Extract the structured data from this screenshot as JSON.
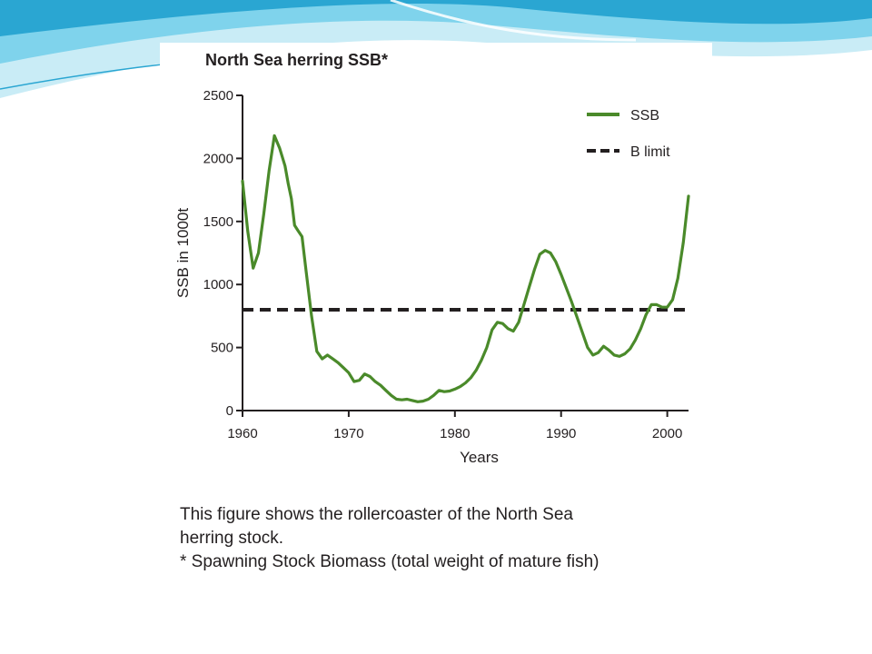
{
  "colors": {
    "ssb_line": "#4a8a2a",
    "blimit_line": "#231f20",
    "banner_light": "#c9ecf6",
    "banner_mid": "#7fd3ec",
    "banner_dark": "#2aa6d2"
  },
  "caption": {
    "line1": "This figure shows the rollercoaster of the North Sea",
    "line2": "herring stock.",
    "line3": "* Spawning Stock Biomass (total weight of mature fish)"
  },
  "chart_data": {
    "type": "line",
    "title": "North Sea herring SSB*",
    "xlabel": "Years",
    "ylabel": "SSB in 1000t",
    "xlim": [
      1960,
      2002
    ],
    "ylim": [
      0,
      2500
    ],
    "xticks": [
      1960,
      1970,
      1980,
      1990,
      2000
    ],
    "yticks": [
      0,
      500,
      1000,
      1500,
      2000,
      2500
    ],
    "grid": false,
    "legend_position": "top-right",
    "series": [
      {
        "name": "SSB",
        "style": "solid",
        "x": [
          1960,
          1960.5,
          1961,
          1961.5,
          1962,
          1962.5,
          1963,
          1963.5,
          1964,
          1964.3,
          1964.6,
          1964.9,
          1965.2,
          1965.6,
          1966,
          1966.5,
          1967,
          1967.5,
          1968,
          1968.5,
          1969,
          1969.5,
          1970,
          1970.5,
          1971,
          1971.5,
          1972,
          1972.5,
          1973,
          1973.5,
          1974,
          1974.5,
          1975,
          1975.5,
          1976,
          1976.5,
          1977,
          1977.5,
          1978,
          1978.5,
          1979,
          1979.5,
          1980,
          1980.5,
          1981,
          1981.5,
          1982,
          1982.5,
          1983,
          1983.5,
          1984,
          1984.5,
          1985,
          1985.5,
          1986,
          1986.5,
          1987,
          1987.5,
          1988,
          1988.5,
          1989,
          1989.5,
          1990,
          1990.5,
          1991,
          1991.5,
          1992,
          1992.5,
          1993,
          1993.5,
          1994,
          1994.5,
          1995,
          1995.5,
          1996,
          1996.5,
          1997,
          1997.5,
          1998,
          1998.5,
          1999,
          1999.5,
          2000,
          2000.5,
          2001,
          2001.5,
          2002
        ],
        "values": [
          1820,
          1420,
          1130,
          1250,
          1560,
          1900,
          2180,
          2080,
          1940,
          1800,
          1680,
          1470,
          1430,
          1380,
          1100,
          750,
          470,
          410,
          440,
          410,
          380,
          340,
          300,
          230,
          240,
          290,
          270,
          230,
          200,
          160,
          120,
          90,
          85,
          90,
          80,
          70,
          75,
          90,
          120,
          160,
          150,
          155,
          170,
          190,
          220,
          260,
          320,
          400,
          500,
          640,
          700,
          690,
          650,
          630,
          700,
          840,
          980,
          1120,
          1240,
          1270,
          1250,
          1180,
          1080,
          970,
          860,
          740,
          620,
          500,
          440,
          460,
          510,
          480,
          440,
          430,
          450,
          490,
          560,
          650,
          760,
          840,
          840,
          820,
          820,
          880,
          1050,
          1330,
          1700
        ]
      },
      {
        "name": "B limit",
        "style": "dashed",
        "x": [
          1960,
          2002
        ],
        "values": [
          800,
          800
        ]
      }
    ]
  }
}
